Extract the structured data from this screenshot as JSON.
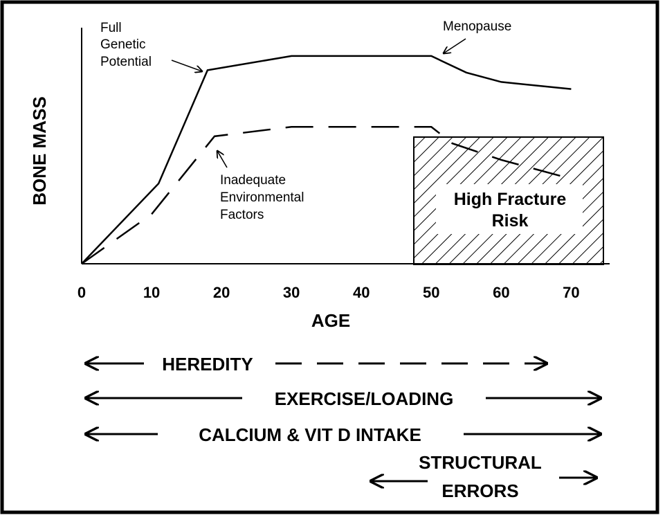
{
  "chart_data": {
    "type": "line",
    "xlabel": "AGE",
    "ylabel": "BONE MASS",
    "xlim": [
      0,
      75.5
    ],
    "ylim": [
      0,
      100
    ],
    "xticks": [
      0,
      10,
      20,
      30,
      40,
      50,
      60,
      70
    ],
    "series": [
      {
        "name": "Full Genetic Potential",
        "style": "solid",
        "color": "#000000",
        "x": [
          0,
          11,
          18,
          30,
          50,
          55,
          60,
          70
        ],
        "values": [
          0,
          34,
          82,
          88,
          88,
          81,
          77,
          74
        ]
      },
      {
        "name": "Inadequate Environmental Factors",
        "style": "dashed",
        "color": "#000000",
        "x": [
          0,
          10,
          19,
          30,
          50,
          53,
          60,
          70
        ],
        "values": [
          0,
          21,
          54,
          58,
          58,
          51,
          44,
          36
        ]
      }
    ],
    "annotations": [
      {
        "lines": [
          "Full",
          "Genetic",
          "Potential"
        ]
      },
      {
        "lines": [
          "Menopause"
        ]
      },
      {
        "lines": [
          "Inadequate",
          "Environmental",
          "Factors"
        ]
      },
      {
        "lines": [
          "High Fracture",
          "Risk"
        ]
      }
    ],
    "factors": [
      "HEREDITY",
      "EXERCISE/LOADING",
      "CALCIUM & VIT D INTAKE",
      [
        "STRUCTURAL",
        "ERRORS"
      ]
    ]
  }
}
